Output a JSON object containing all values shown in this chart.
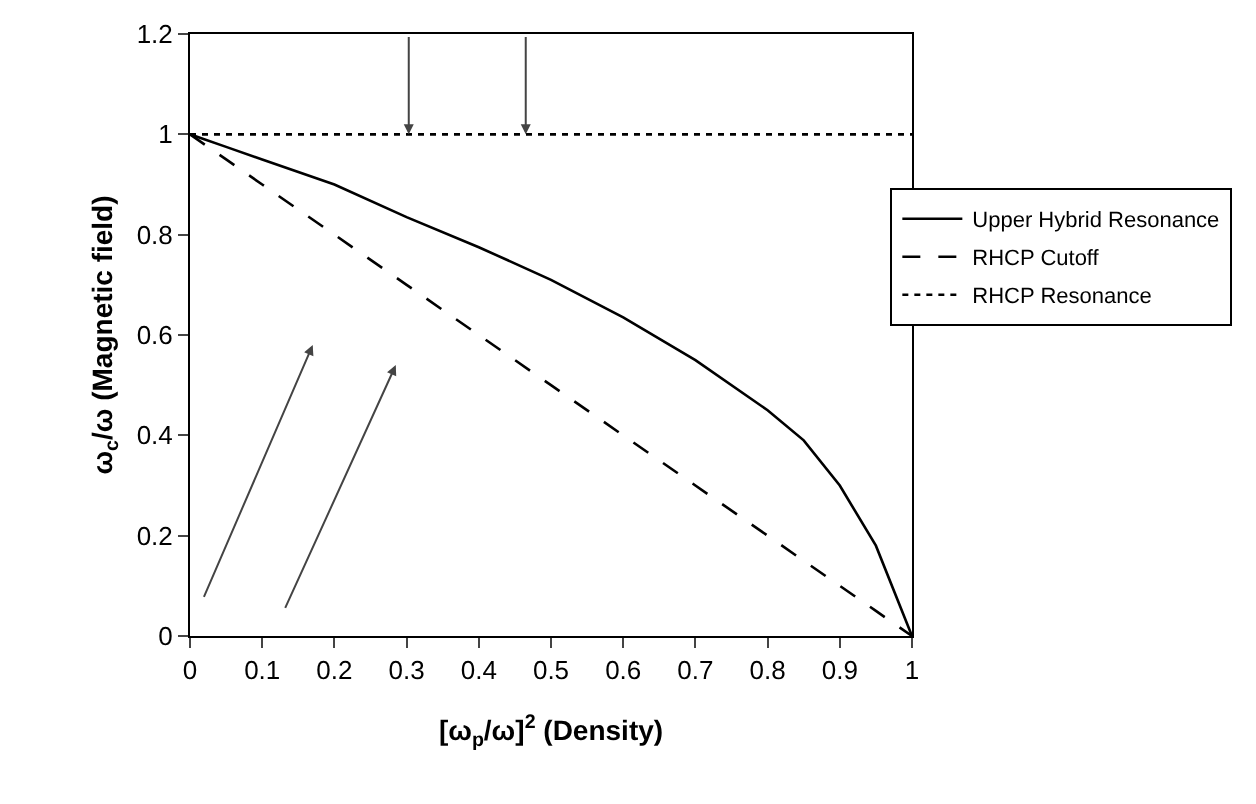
{
  "chart_data": {
    "type": "line",
    "xlabel": "[ω$_{p}$/ω]$^{2}$ (Density)",
    "ylabel": "ω$_{c}$/ω (Magnetic field)",
    "x": [
      0,
      0.05,
      0.1,
      0.2,
      0.3,
      0.4,
      0.5,
      0.6,
      0.7,
      0.8,
      0.85,
      0.9,
      0.95,
      1
    ],
    "series": [
      {
        "name": "Upper Hybrid Resonance",
        "color": "#000000",
        "line_style": "solid",
        "values": [
          1,
          0.975,
          0.95,
          0.9,
          0.835,
          0.775,
          0.71,
          0.635,
          0.55,
          0.45,
          0.39,
          0.3,
          0.18,
          0
        ]
      },
      {
        "name": "RHCP Cutoff",
        "color": "#000000",
        "line_style": "dashed",
        "values": [
          1,
          0.95,
          0.9,
          0.8,
          0.7,
          0.6,
          0.5,
          0.4,
          0.3,
          0.2,
          0.15,
          0.1,
          0.05,
          0
        ]
      },
      {
        "name": "RHCP Resonance",
        "color": "#000000",
        "line_style": "dotted",
        "values": [
          1,
          1,
          1,
          1,
          1,
          1,
          1,
          1,
          1,
          1,
          1,
          1,
          1,
          1
        ]
      }
    ],
    "xlim": [
      0,
      1
    ],
    "xticks": [
      0,
      0.1,
      0.2,
      0.3,
      0.4,
      0.5,
      0.6,
      0.7,
      0.8,
      0.9,
      1
    ],
    "ylim": [
      0,
      1.2
    ],
    "yticks": [
      0,
      0.2,
      0.4,
      0.6,
      0.8,
      1,
      1.2
    ],
    "grid": false,
    "legend": "right",
    "marker": "none"
  }
}
